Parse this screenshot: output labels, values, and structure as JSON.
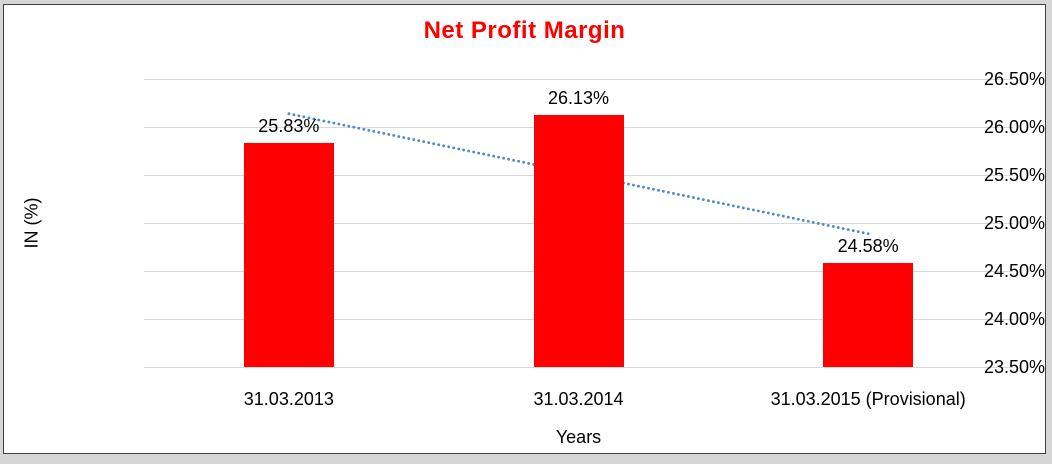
{
  "chart_data": {
    "type": "bar",
    "title": "Net Profit Margin",
    "title_color": "#ff0000",
    "xlabel": "Years",
    "ylabel": "IN (%)",
    "categories": [
      "31.03.2013",
      "31.03.2014",
      "31.03.2015 (Provisional)"
    ],
    "values": [
      25.83,
      26.13,
      24.58
    ],
    "data_labels": [
      "25.83%",
      "26.13%",
      "24.58%"
    ],
    "bar_color": "#ff0000",
    "ylim": [
      23.5,
      26.5
    ],
    "ytick_step": 0.5,
    "ytick_labels": [
      "26.50%",
      "26.00%",
      "25.50%",
      "25.00%",
      "24.50%",
      "24.00%",
      "23.50%"
    ],
    "grid": true,
    "gridline_color": "#d9d9d9",
    "legend": "none",
    "trendline": {
      "style": "dotted",
      "color": "#4f87c7",
      "y_start": 26.138,
      "y_end": 24.888
    }
  }
}
